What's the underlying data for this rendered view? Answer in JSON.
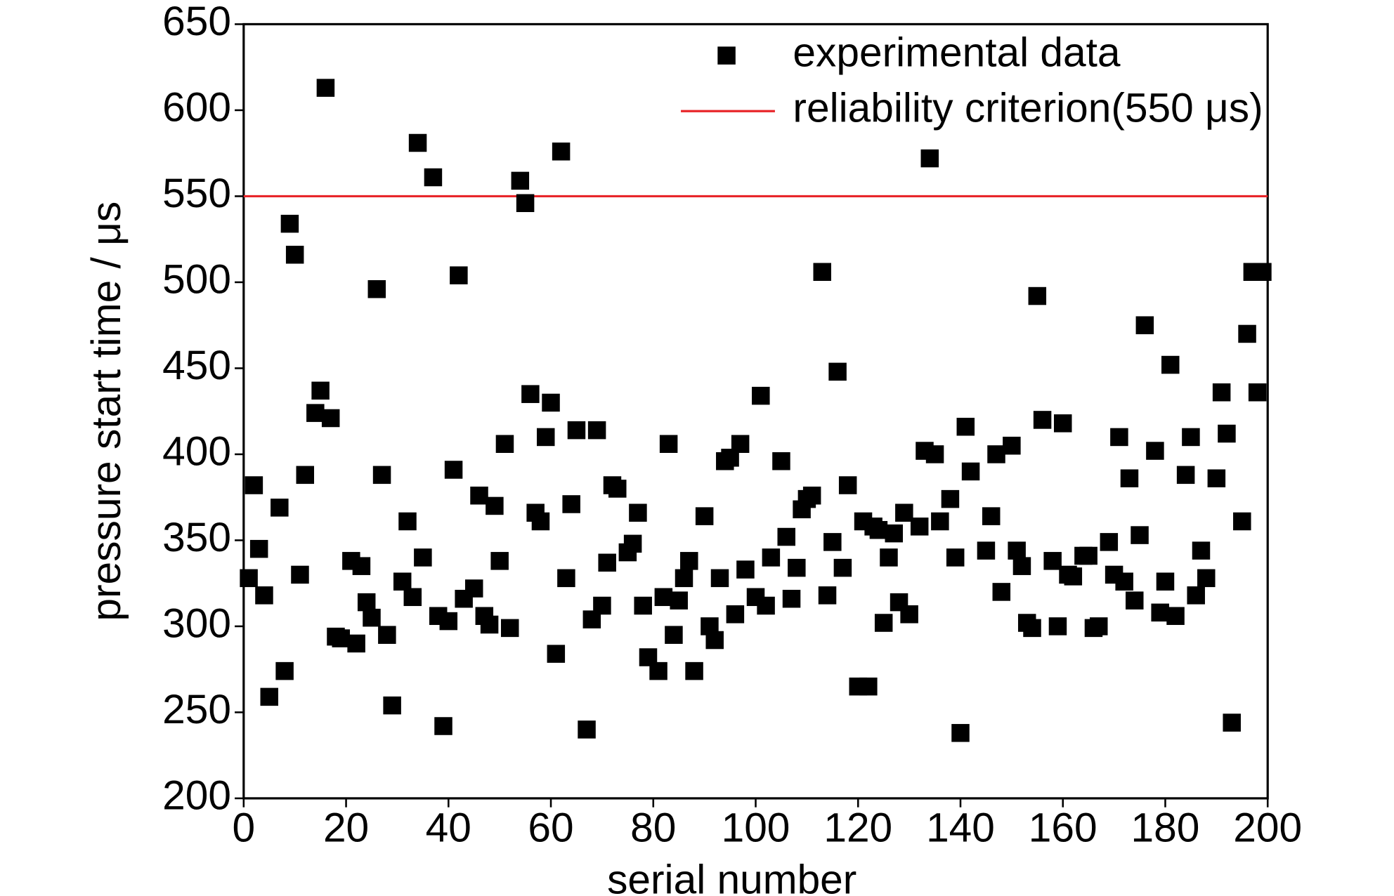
{
  "chart_data": {
    "type": "scatter",
    "x_label": "serial number",
    "y_label": "pressure start time / μs",
    "xlim": [
      0,
      200
    ],
    "xticks": [
      0,
      20,
      40,
      60,
      80,
      100,
      120,
      140,
      160,
      180,
      200
    ],
    "ylim": [
      200,
      650
    ],
    "yticks": [
      200,
      250,
      300,
      350,
      400,
      450,
      500,
      550,
      600,
      650
    ],
    "legend": "upper right",
    "series": [
      {
        "name": "experimental data",
        "color": "#000000",
        "x": [
          1,
          2,
          3,
          4,
          5,
          7,
          8,
          9,
          10,
          11,
          12,
          14,
          15,
          16,
          17,
          18,
          19,
          21,
          22,
          23,
          24,
          25,
          26,
          27,
          28,
          29,
          31,
          32,
          33,
          34,
          35,
          37,
          38,
          39,
          40,
          41,
          42,
          43,
          45,
          46,
          47,
          48,
          49,
          50,
          51,
          52,
          54,
          55,
          56,
          57,
          58,
          59,
          60,
          61,
          62,
          63,
          64,
          65,
          67,
          68,
          69,
          70,
          71,
          72,
          73,
          75,
          76,
          77,
          78,
          79,
          81,
          82,
          83,
          84,
          85,
          86,
          87,
          88,
          90,
          91,
          92,
          93,
          94,
          95,
          96,
          97,
          98,
          100,
          101,
          102,
          103,
          105,
          106,
          107,
          108,
          109,
          110,
          111,
          113,
          114,
          115,
          116,
          117,
          118,
          120,
          121,
          122,
          123,
          124,
          125,
          126,
          127,
          128,
          129,
          130,
          132,
          133,
          134,
          135,
          136,
          138,
          139,
          140,
          141,
          142,
          145,
          146,
          147,
          148,
          150,
          151,
          152,
          153,
          154,
          155,
          156,
          158,
          159,
          160,
          161,
          162,
          164,
          165,
          166,
          167,
          169,
          170,
          171,
          172,
          173,
          174,
          175,
          176,
          178,
          179,
          180,
          181,
          182,
          184,
          185,
          186,
          187,
          188,
          190,
          191,
          192,
          193,
          195,
          196,
          197,
          198,
          199
        ],
        "values": [
          328,
          382,
          345,
          318,
          259,
          369,
          274,
          534,
          516,
          330,
          388,
          424,
          437,
          613,
          421,
          294,
          293,
          338,
          290,
          335,
          314,
          305,
          496,
          388,
          295,
          254,
          326,
          361,
          317,
          581,
          340,
          561,
          306,
          242,
          303,
          391,
          504,
          316,
          322,
          376,
          306,
          301,
          370,
          338,
          406,
          299,
          559,
          546,
          435,
          366,
          361,
          410,
          430,
          284,
          576,
          328,
          371,
          414,
          240,
          304,
          414,
          312,
          337,
          382,
          380,
          343,
          348,
          366,
          312,
          282,
          274,
          317,
          406,
          295,
          315,
          328,
          338,
          274,
          364,
          300,
          292,
          328,
          396,
          398,
          307,
          406,
          333,
          317,
          434,
          312,
          340,
          396,
          352,
          316,
          334,
          368,
          374,
          376,
          506,
          318,
          349,
          448,
          334,
          382,
          265,
          361,
          265,
          358,
          356,
          302,
          340,
          354,
          314,
          366,
          307,
          358,
          402,
          572,
          400,
          361,
          374,
          340,
          238,
          416,
          390,
          344,
          364,
          400,
          320,
          405,
          344,
          335,
          302,
          299,
          492,
          420,
          338,
          300,
          418,
          330,
          329,
          341,
          341,
          299,
          300,
          349,
          330,
          410,
          326,
          386,
          315,
          353,
          475,
          402,
          308,
          326,
          452,
          306,
          388,
          410,
          318,
          344,
          328,
          386,
          436,
          412,
          244,
          361,
          470,
          506,
          436,
          506
        ]
      }
    ],
    "reference_line": {
      "name": "reliability criterion(550 μs)",
      "value": 550,
      "color": "#e8262a"
    }
  }
}
